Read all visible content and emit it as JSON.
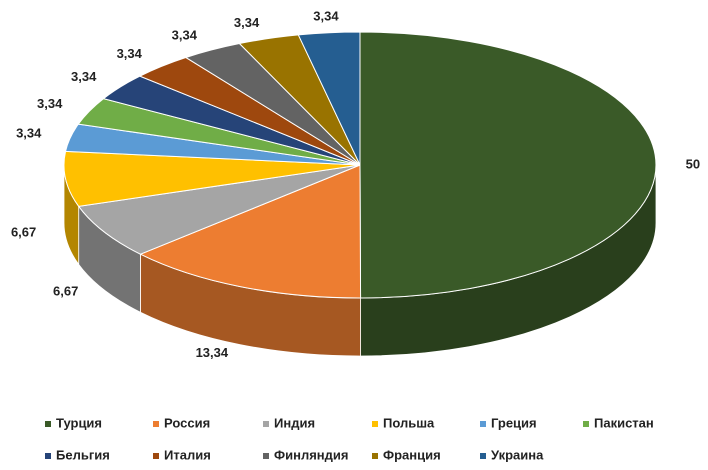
{
  "chart_data": {
    "type": "pie3d",
    "categories": [
      "Турция",
      "Россия",
      "Индия",
      "Польша",
      "Греция",
      "Пакистан",
      "Бельгия",
      "Италия",
      "Финляндия",
      "Франция",
      "Украина"
    ],
    "values": [
      50,
      13.34,
      6.67,
      6.67,
      3.34,
      3.34,
      3.34,
      3.34,
      3.34,
      3.34,
      3.34
    ],
    "value_labels": [
      "50",
      "13,34",
      "6,67",
      "6,67",
      "3,34",
      "3,34",
      "3,34",
      "3,34",
      "3,34",
      "3,34",
      "3,34"
    ],
    "colors": [
      "#3a5a28",
      "#ed7d31",
      "#a5a5a5",
      "#ffc000",
      "#5b9bd5",
      "#70ad47",
      "#264478",
      "#9e480e",
      "#636363",
      "#997300",
      "#255e91"
    ],
    "legend": "bottom"
  }
}
